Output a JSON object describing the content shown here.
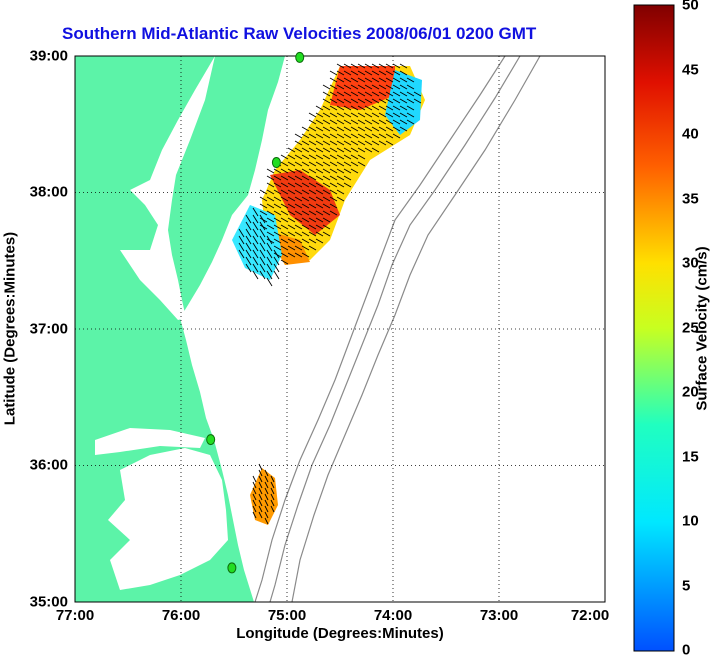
{
  "title": "Southern Mid-Atlantic Raw Velocities 2008/06/01 0200 GMT",
  "x_axis": {
    "label": "Longitude (Degrees:Minutes)",
    "ticks": [
      "77:00",
      "76:00",
      "75:00",
      "74:00",
      "73:00",
      "72:00"
    ]
  },
  "y_axis": {
    "label": "Latitude (Degrees:Minutes)",
    "ticks": [
      "39:00",
      "38:00",
      "37:00",
      "36:00",
      "35:00"
    ]
  },
  "colorbar": {
    "label": "Surface Velocity (cm/s)",
    "ticks": [
      "50",
      "45",
      "40",
      "35",
      "30",
      "25",
      "20",
      "15",
      "10",
      "5",
      "0"
    ],
    "range": [
      0,
      50
    ],
    "colormap": "jet"
  },
  "map_extent": {
    "lon": [
      -77,
      -72
    ],
    "lat": [
      35,
      39
    ]
  },
  "colors": {
    "land": "#5cf3a8",
    "title": "#1010e0",
    "station": "#22dd22",
    "bathymetry": "#8a8a8a"
  },
  "stations": [
    {
      "lon": -74.88,
      "lat": 38.99
    },
    {
      "lon": -75.1,
      "lat": 38.22
    },
    {
      "lon": -75.72,
      "lat": 36.19
    },
    {
      "lon": -75.52,
      "lat": 35.25
    }
  ]
}
